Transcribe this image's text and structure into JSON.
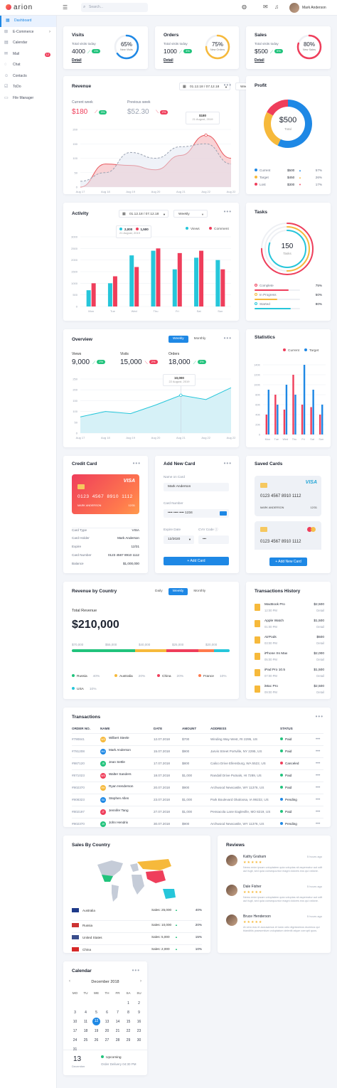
{
  "app": {
    "brand": "arion",
    "search_placeholder": "Search...",
    "user_name": "Mark Anderson"
  },
  "sidebar": {
    "items": [
      {
        "label": "Dashboard",
        "icon": "dashboard-icon",
        "active": true
      },
      {
        "label": "E-Commerce",
        "icon": "cart-icon",
        "chevron": true
      },
      {
        "label": "Calendar",
        "icon": "calendar-icon"
      },
      {
        "label": "Mail",
        "icon": "mail-icon",
        "badge": "12"
      },
      {
        "label": "Chat",
        "icon": "chat-icon"
      },
      {
        "label": "Contacts",
        "icon": "contacts-icon"
      },
      {
        "label": "ToDo",
        "icon": "todo-icon"
      },
      {
        "label": "File Manager",
        "icon": "folder-icon"
      }
    ]
  },
  "kpis": [
    {
      "title": "Visits",
      "sub": "Total visits today",
      "value": "4000",
      "pct_label": "1%",
      "ring": "65%",
      "ring_label": "New Visits",
      "ring_value": 0.65,
      "color": "#1e88e5",
      "link": "Detail"
    },
    {
      "title": "Orders",
      "sub": "Total visits today",
      "value": "1000",
      "pct_label": "3%",
      "ring": "75%",
      "ring_label": "New Orders",
      "ring_value": 0.75,
      "color": "#f6b93b",
      "link": "Detail"
    },
    {
      "title": "Sales",
      "sub": "Total visits today",
      "value": "$500",
      "pct_label": "5%",
      "ring": "80%",
      "ring_label": "New Sales",
      "ring_value": 0.8,
      "color": "#ef3e5b",
      "link": "Detail"
    }
  ],
  "revenue": {
    "title": "Revenue",
    "date": "01.12.18 / 07.12.18",
    "period": "Weekly",
    "current_label": "Current week",
    "current_value": "$180",
    "current_pct": "3%",
    "prev_label": "Previous week",
    "prev_value": "$52.30",
    "prev_pct": "2%",
    "tooltip_value": "$180",
    "tooltip_date": "21 August, 2019"
  },
  "profit": {
    "title": "Profit",
    "center": "$500",
    "center_label": "Total",
    "rows": [
      {
        "label": "Current",
        "value": "$500",
        "pct": "57%",
        "color": "#1e88e5"
      },
      {
        "label": "Target",
        "value": "$450",
        "pct": "26%",
        "color": "#f6b93b"
      },
      {
        "label": "Lost",
        "value": "$300",
        "pct": "17%",
        "color": "#ef3e5b"
      }
    ]
  },
  "activity": {
    "title": "Activity",
    "date": "01.12.18 / 07.12.18",
    "period": "Weekly",
    "tooltip_a": "2,000",
    "tooltip_b": "1,500",
    "tooltip_date": "21 August, 2019",
    "legend": [
      "Views",
      "Comment"
    ]
  },
  "tasks": {
    "title": "Tasks",
    "center": "150",
    "center_label": "Tasks",
    "rows": [
      {
        "label": "Complete",
        "pct": "75%",
        "color": "#ef3e5b",
        "value": 0.75
      },
      {
        "label": "In Progress",
        "pct": "50%",
        "color": "#f6b93b",
        "value": 0.5
      },
      {
        "label": "Started",
        "pct": "80%",
        "color": "#26c6da",
        "value": 0.8
      }
    ]
  },
  "overview": {
    "title": "Overview",
    "tabs": [
      "Weekly",
      "Monthly"
    ],
    "stats": [
      {
        "label": "Views",
        "value": "9,000",
        "pct": "2%",
        "up": true
      },
      {
        "label": "Visits",
        "value": "15,000",
        "pct": "2%",
        "up": false
      },
      {
        "label": "Orders",
        "value": "18,000",
        "pct": "3%",
        "up": true
      }
    ],
    "tooltip_value": "10,000",
    "tooltip_date": "22 August, 2019"
  },
  "statistics": {
    "title": "Statistics",
    "legend": [
      "Current",
      "Target"
    ]
  },
  "credit_card": {
    "title": "Credit Card",
    "brand": "VISA",
    "number": "0123  4567  8910  1112",
    "holder": "MARK ANDERSON",
    "exp": "12/31",
    "rows": [
      {
        "label": "Card Type",
        "value": "VISA"
      },
      {
        "label": "Card Holder",
        "value": "Mark Anderson"
      },
      {
        "label": "Expire",
        "value": "12/31"
      },
      {
        "label": "Card Number",
        "value": "0123 4567 8910 1112"
      },
      {
        "label": "Balance",
        "value": "$1,000,000"
      }
    ]
  },
  "add_card": {
    "title": "Add New Card",
    "name_label": "Name on Card",
    "name_value": "Mark Anderson",
    "number_label": "Card Number",
    "number_value": "•••• •••• •••• 1234",
    "exp_label": "Expire Date",
    "exp_value": "12/2020",
    "cvv_label": "CVV Code",
    "cvv_value": "•••",
    "button": "+ Add Card"
  },
  "saved_cards": {
    "title": "Saved Cards",
    "card1": {
      "brand": "VISA",
      "number": "0123   4567   8910   1112",
      "holder": "MARK ANDERSON",
      "exp": "12/31"
    },
    "card2": {
      "number": "0123   4567   8910   1112"
    },
    "button": "+ Add New Card"
  },
  "country_rev": {
    "title": "Revenue by Country",
    "tabs": [
      "Daily",
      "Weekly",
      "Monthly"
    ],
    "total_label": "Total Revenue",
    "total": "$210,000",
    "scale": [
      "$70,000",
      "$55,000",
      "$40,000",
      "$25,000",
      "$20,000"
    ],
    "legend": [
      {
        "name": "Russia",
        "pct": "40%",
        "color": "#21c37c"
      },
      {
        "name": "Australia",
        "pct": "20%",
        "color": "#f6b93b"
      },
      {
        "name": "China",
        "pct": "20%",
        "color": "#ef3e5b"
      },
      {
        "name": "France",
        "pct": "10%",
        "color": "#ff7a4d"
      },
      {
        "name": "USA",
        "pct": "10%",
        "color": "#26c6da"
      }
    ]
  },
  "history": {
    "title": "Transactions History",
    "items": [
      {
        "name": "MacBook Pro",
        "time": "12:00 PM",
        "amount": "$2,500",
        "link": "Detail"
      },
      {
        "name": "Apple Watch",
        "time": "01:00 PM",
        "amount": "$1,500",
        "link": "Detail"
      },
      {
        "name": "AirPods",
        "time": "03:00 PM",
        "amount": "$500",
        "link": "Detail"
      },
      {
        "name": "iPhone Xs Max",
        "time": "05:00 PM",
        "amount": "$2,000",
        "link": "Detail"
      },
      {
        "name": "iPad Pro 10.5",
        "time": "07:00 PM",
        "amount": "$1,500",
        "link": "Detail"
      },
      {
        "name": "iMac Pro",
        "time": "09:00 PM",
        "amount": "$2,500",
        "link": "Detail"
      }
    ]
  },
  "transactions": {
    "title": "Transactions",
    "headers": [
      "ORDER NO.",
      "NAME",
      "DATE",
      "AMOUNT",
      "ADDRESS",
      "STATUS"
    ],
    "rows": [
      {
        "id": "#790841",
        "name": "Wilbert Steele",
        "init": "WS",
        "color": "#f6b93b",
        "date": "12.07.2018",
        "amount": "$700",
        "address": "Winding Way West, RI 2295, US",
        "status": "Paid",
        "scolor": "#21c37c"
      },
      {
        "id": "#781208",
        "name": "Mark Anderson",
        "init": "MA",
        "color": "#1e88e5",
        "date": "15.07.2018",
        "amount": "$900",
        "address": "Jarvis Street Portville, NY 2295, US",
        "status": "Paid",
        "scolor": "#21c37c"
      },
      {
        "id": "#987120",
        "name": "Jean Settle",
        "init": "JS",
        "color": "#21c37c",
        "date": "17.07.2018",
        "amount": "$800",
        "address": "Calico Drive Ellensburg, WA 5522, US",
        "status": "Canceled",
        "scolor": "#ef3e5b"
      },
      {
        "id": "#871023",
        "name": "Walter Sanders",
        "init": "WS",
        "color": "#ef3e5b",
        "date": "18.07.2018",
        "amount": "$1,000",
        "address": "Randall Drive Putnals, HI 7289, US",
        "status": "Paid",
        "scolor": "#21c37c"
      },
      {
        "id": "#902370",
        "name": "Ryan Henderson",
        "init": "RH",
        "color": "#f6b93b",
        "date": "20.07.2018",
        "amount": "$900",
        "address": "Archwood Newcastle, WY 11376, US",
        "status": "Paid",
        "scolor": "#21c37c"
      },
      {
        "id": "#908323",
        "name": "Stephen Allen",
        "init": "SA",
        "color": "#1e88e5",
        "date": "23.07.2018",
        "amount": "$1,000",
        "address": "Park Boulevard Okaloosa, IA 99232, US",
        "status": "Pending",
        "scolor": "#1e88e5"
      },
      {
        "id": "#802197",
        "name": "Jennifer Tang",
        "init": "JT",
        "color": "#ef3e5b",
        "date": "27.07.2018",
        "amount": "$1,000",
        "address": "Pensacola Lane Eagleville, MO 8219, US",
        "status": "Paid",
        "scolor": "#21c37c"
      },
      {
        "id": "#902370",
        "name": "John Hendrix",
        "init": "JH",
        "color": "#21c37c",
        "date": "30.07.2018",
        "amount": "$900",
        "address": "Archwood Newcastle, WY 11376, US",
        "status": "Pending",
        "scolor": "#1e88e5"
      }
    ]
  },
  "sales_country": {
    "title": "Sales By Country",
    "rows": [
      {
        "country": "Australia",
        "sales": "Sales: 25,000",
        "pct": "40%",
        "flag": "au-flag-icon"
      },
      {
        "country": "Russia",
        "sales": "Sales: 10,000",
        "pct": "20%",
        "flag": "ru-flag-icon"
      },
      {
        "country": "United States",
        "sales": "Sales: 5,000",
        "pct": "15%",
        "flag": "us-flag-icon"
      },
      {
        "country": "China",
        "sales": "Sales: 2,000",
        "pct": "10%",
        "flag": "cn-flag-icon"
      }
    ]
  },
  "reviews": {
    "title": "Reviews",
    "items": [
      {
        "name": "Kathy Graham",
        "time": "5 hours ago",
        "text": "Nemo enim ipsam voluptatem quia voluptas sit aspernatur aut odit aut fugit, sed quia consequuntur magni dolores eos qui ratione."
      },
      {
        "name": "Dale Fisher",
        "time": "5 hours ago",
        "text": "Nemo enim ipsam voluptatem quia voluptas sit aspernatur aut odit aut fugit, sed quia consequuntur magni dolores eos qui ratione."
      },
      {
        "name": "Bruce Henderson",
        "time": "5 hours ago",
        "text": "At vero eos et accusamus et iusto odio dignissimos ducimus qui blanditiis praesentium voluptatum deleniti atque corrupti quos."
      }
    ]
  },
  "calendar": {
    "title": "Calendar",
    "month": "December",
    "year": "2018",
    "weekdays": [
      "MO",
      "TU",
      "WE",
      "TH",
      "FR",
      "SA",
      "SU"
    ],
    "days": [
      "",
      "",
      "",
      "",
      "",
      "1",
      "2",
      "3",
      "4",
      "5",
      "6",
      "7",
      "8",
      "9",
      "10",
      "11",
      "12",
      "13",
      "14",
      "15",
      "16",
      "17",
      "18",
      "19",
      "20",
      "21",
      "22",
      "23",
      "24",
      "25",
      "26",
      "27",
      "28",
      "29",
      "30",
      "31"
    ],
    "today": "12",
    "event_day": "13",
    "event_month": "December",
    "event_title": "Upcoming",
    "event_text": "Order Delivery 04:30 PM"
  },
  "chart_data": [
    {
      "type": "area",
      "title": "Revenue",
      "x": [
        "Aug 17",
        "Aug 18",
        "Aug 19",
        "Aug 20",
        "Aug 21",
        "Aug 22",
        "Aug 22"
      ],
      "ylim": [
        0,
        200
      ],
      "yticks": [
        0,
        50,
        100,
        150,
        200
      ],
      "series": [
        {
          "values": [
            0,
            80,
            75,
            60,
            110,
            180,
            100
          ]
        },
        {
          "values": [
            20,
            50,
            120,
            100,
            140,
            150,
            80
          ]
        }
      ]
    },
    {
      "type": "bar",
      "title": "Activity",
      "categories": [
        "Mon",
        "Tue",
        "Wed",
        "Thu",
        "Fri",
        "Sat",
        "Sun"
      ],
      "ylim": [
        0,
        3000
      ],
      "yticks": [
        0,
        500,
        1000,
        1500,
        2000,
        2500,
        3000
      ],
      "series": [
        {
          "name": "Views",
          "values": [
            700,
            1000,
            2200,
            2400,
            1600,
            2100,
            2000
          ]
        },
        {
          "name": "Comment",
          "values": [
            1000,
            1300,
            1700,
            2500,
            2300,
            2400,
            1600
          ]
        }
      ]
    },
    {
      "type": "area",
      "title": "Overview",
      "x": [
        "Aug 17",
        "Aug 18",
        "Aug 19",
        "Aug 20",
        "Aug 21",
        "Aug 22",
        "Aug 22"
      ],
      "ylim": [
        0,
        250
      ],
      "yticks": [
        0,
        50,
        100,
        150,
        200,
        250
      ],
      "series": [
        {
          "values": [
            75,
            100,
            90,
            130,
            175,
            155,
            210
          ]
        }
      ]
    },
    {
      "type": "bar",
      "title": "Statistics",
      "categories": [
        "Mon",
        "Tue",
        "Wed",
        "Thu",
        "Fri",
        "Sat",
        "Sun"
      ],
      "ylim": [
        0,
        140000
      ],
      "yticks": [
        "0",
        "20K",
        "40K",
        "60K",
        "80K",
        "100K",
        "120K",
        "140K"
      ],
      "series": [
        {
          "name": "Current",
          "values": [
            40,
            80,
            50,
            120,
            60,
            55,
            40
          ]
        },
        {
          "name": "Target",
          "values": [
            90,
            60,
            100,
            80,
            140,
            90,
            60
          ]
        }
      ]
    },
    {
      "type": "pie",
      "title": "Profit",
      "categories": [
        "Current",
        "Target",
        "Lost"
      ],
      "values": [
        57,
        26,
        17
      ]
    }
  ]
}
